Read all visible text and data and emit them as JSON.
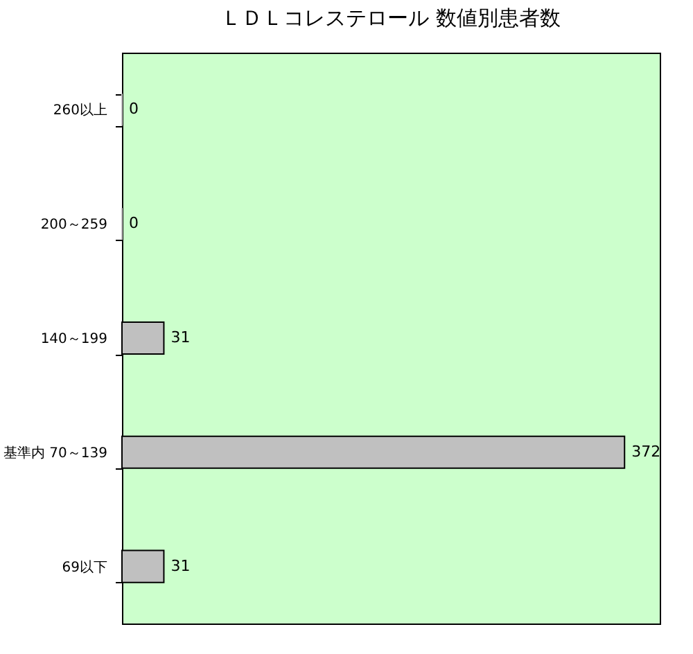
{
  "chart_data": {
    "type": "bar",
    "orientation": "horizontal",
    "title": "ＬＤＬコレステロール 数値別患者数",
    "categories": [
      "260以上",
      "200～259",
      "140～199",
      "基準内 70～139",
      "69以下"
    ],
    "values": [
      0,
      0,
      31,
      372,
      31
    ],
    "color": "#c0c0c0",
    "data_labels": true,
    "grid": false
  }
}
